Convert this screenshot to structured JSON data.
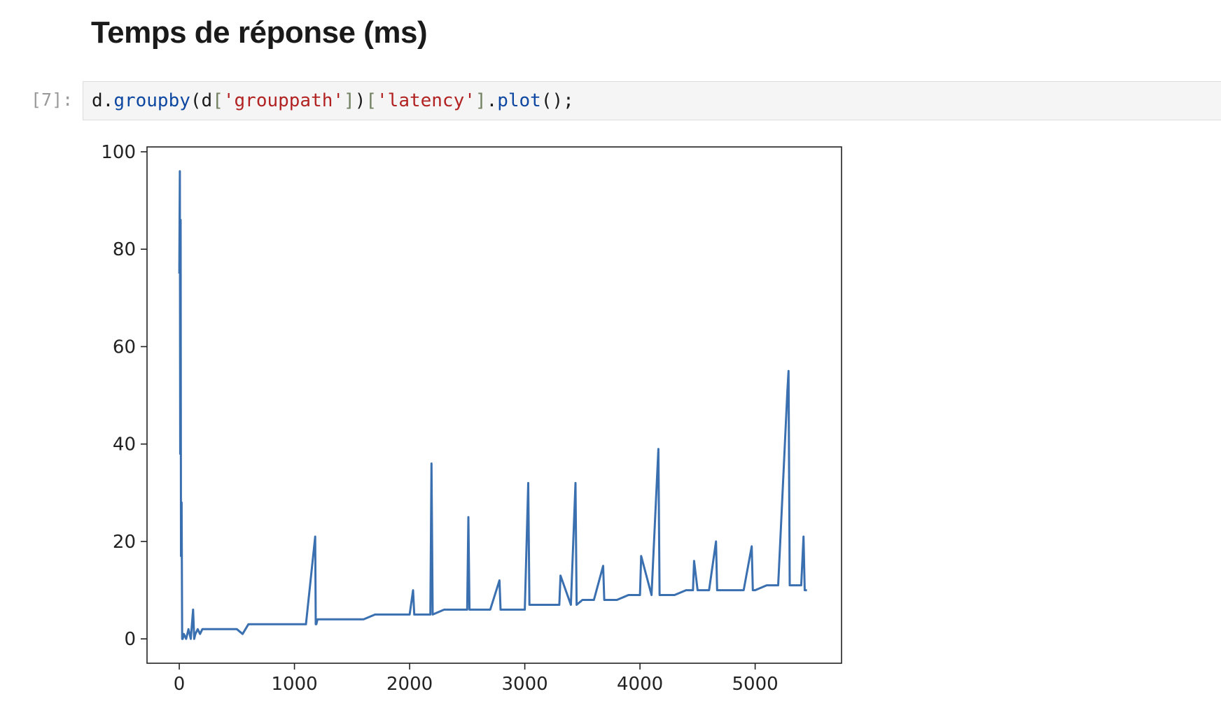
{
  "heading": "Temps de réponse (ms)",
  "cell": {
    "prompt": "[7]:",
    "code_tokens": [
      {
        "text": "d",
        "kind": "name"
      },
      {
        "text": ".",
        "kind": "punct"
      },
      {
        "text": "groupby",
        "kind": "fn"
      },
      {
        "text": "(",
        "kind": "punct"
      },
      {
        "text": "d",
        "kind": "name"
      },
      {
        "text": "[",
        "kind": "brk"
      },
      {
        "text": "'grouppath'",
        "kind": "str"
      },
      {
        "text": "]",
        "kind": "brk"
      },
      {
        "text": ")",
        "kind": "punct"
      },
      {
        "text": "[",
        "kind": "brk"
      },
      {
        "text": "'latency'",
        "kind": "str"
      },
      {
        "text": "]",
        "kind": "brk"
      },
      {
        "text": ".",
        "kind": "punct"
      },
      {
        "text": "plot",
        "kind": "fn"
      },
      {
        "text": "();",
        "kind": "punct"
      }
    ]
  },
  "colors": {
    "line": "#3a6fb0",
    "code_bg": "#f5f5f5"
  },
  "chart_data": {
    "type": "line",
    "xlim": [
      -280,
      5750
    ],
    "ylim": [
      -5,
      101
    ],
    "xticks": [
      0,
      1000,
      2000,
      3000,
      4000,
      5000
    ],
    "xtick_labels": [
      "0",
      "1000",
      "2000",
      "3000",
      "4000",
      "5000"
    ],
    "yticks": [
      0,
      20,
      40,
      60,
      80,
      100
    ],
    "ytick_labels": [
      "0",
      "20",
      "40",
      "60",
      "80",
      "100"
    ],
    "grid": false,
    "series": [
      {
        "x": [
          0,
          5,
          8,
          12,
          15,
          20,
          25,
          30,
          40,
          60,
          80,
          100,
          120,
          130,
          140,
          160,
          180,
          200,
          300,
          400,
          500,
          550,
          600,
          700,
          800,
          900,
          1000,
          1100,
          1180,
          1185,
          1190,
          1200,
          1300,
          1400,
          1500,
          1600,
          1700,
          1800,
          1900,
          2000,
          2030,
          2040,
          2100,
          2180,
          2190,
          2200,
          2300,
          2400,
          2500,
          2510,
          2520,
          2600,
          2700,
          2780,
          2790,
          2900,
          3000,
          3030,
          3040,
          3100,
          3200,
          3300,
          3310,
          3400,
          3440,
          3450,
          3500,
          3600,
          3680,
          3690,
          3700,
          3800,
          3900,
          4000,
          4010,
          4100,
          4160,
          4170,
          4200,
          4300,
          4400,
          4460,
          4470,
          4500,
          4600,
          4660,
          4670,
          4700,
          4800,
          4900,
          4970,
          4980,
          5000,
          5100,
          5200,
          5280,
          5290,
          5300,
          5310,
          5320,
          5400,
          5420,
          5430,
          5450
        ],
        "y": [
          75,
          96,
          38,
          86,
          17,
          28,
          0,
          0,
          1,
          0,
          2,
          0,
          6,
          0,
          1,
          2,
          1,
          2,
          2,
          2,
          2,
          1,
          3,
          3,
          3,
          3,
          3,
          3,
          21,
          3,
          3,
          4,
          4,
          4,
          4,
          4,
          5,
          5,
          5,
          5,
          10,
          5,
          5,
          5,
          36,
          5,
          6,
          6,
          6,
          25,
          6,
          6,
          6,
          12,
          6,
          6,
          6,
          32,
          7,
          7,
          7,
          7,
          13,
          7,
          32,
          7,
          8,
          8,
          15,
          8,
          8,
          8,
          9,
          9,
          17,
          9,
          39,
          9,
          9,
          9,
          10,
          10,
          16,
          10,
          10,
          20,
          10,
          10,
          10,
          10,
          19,
          10,
          10,
          11,
          11,
          51,
          55,
          11,
          11,
          11,
          11,
          21,
          10,
          10
        ]
      }
    ]
  }
}
